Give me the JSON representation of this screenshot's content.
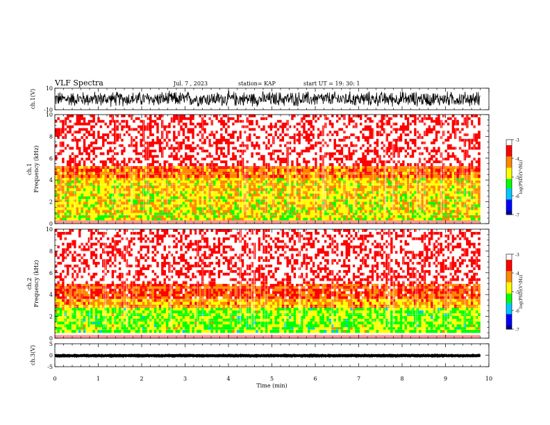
{
  "header": {
    "title": "VLF Spectra",
    "date": "Jul. 7 , 2023",
    "station": "station= KAP",
    "start": "start UT =  19: 30: 1"
  },
  "colors": {
    "scale": [
      "#00008b",
      "#0000ff",
      "#00c8ff",
      "#00ff00",
      "#ffff00",
      "#ff8800",
      "#ff0000",
      "#ffffff"
    ]
  },
  "chart_data": [
    {
      "type": "line",
      "panel": "ch1-waveform",
      "ylabel": "ch.1(V)",
      "ylim": [
        -10,
        10
      ],
      "yticks": [
        "10",
        "-10"
      ]
    },
    {
      "type": "heatmap",
      "panel": "ch1-spectrogram",
      "ylabel": "ch.1\nFrequency (kHz)",
      "ylim": [
        0,
        10
      ],
      "yticks": [
        "0",
        "2",
        "4",
        "6",
        "8",
        "10"
      ],
      "xlim": [
        0,
        10
      ],
      "colorbar": {
        "label": "log(PSD)(V²/Hz)",
        "range": [
          -7,
          -3
        ],
        "ticks": [
          "-3",
          "-4",
          "-5",
          "-6",
          "-7"
        ]
      },
      "bands": [
        {
          "fmin": 0.3,
          "fmax": 1.0,
          "level": -4.8
        },
        {
          "fmin": 1.0,
          "fmax": 3.0,
          "level": -4.6
        },
        {
          "fmin": 3.0,
          "fmax": 4.2,
          "level": -4.5
        },
        {
          "fmin": 4.2,
          "fmax": 5.3,
          "level": -4.0
        },
        {
          "fmin": 5.3,
          "fmax": 10,
          "level": -3.2
        }
      ]
    },
    {
      "type": "heatmap",
      "panel": "ch2-spectrogram",
      "ylabel": "ch.2\nFrequency (kHz)",
      "ylim": [
        0,
        10
      ],
      "yticks": [
        "0",
        "2",
        "4",
        "6",
        "8",
        "10"
      ],
      "xlim": [
        0,
        10
      ],
      "colorbar": {
        "label": "log(PSD)(V²/Hz)",
        "range": [
          -7,
          -3
        ],
        "ticks": [
          "-3",
          "-4",
          "-5",
          "-6",
          "-7"
        ]
      },
      "bands": [
        {
          "fmin": 0.5,
          "fmax": 2.8,
          "level": -5.0
        },
        {
          "fmin": 2.8,
          "fmax": 3.6,
          "level": -4.3
        },
        {
          "fmin": 3.6,
          "fmax": 5.0,
          "level": -3.8
        },
        {
          "fmin": 5.0,
          "fmax": 10,
          "level": -3.2
        }
      ]
    },
    {
      "type": "line",
      "panel": "ch3-waveform",
      "ylabel": "ch.3(V)",
      "ylim": [
        -5,
        5
      ],
      "yticks": [
        "5",
        "0",
        "-5"
      ],
      "xlabel": "Time (min)",
      "xlim": [
        0,
        10
      ],
      "xticks": [
        "0",
        "1",
        "2",
        "3",
        "4",
        "5",
        "6",
        "7",
        "8",
        "9",
        "10"
      ]
    }
  ]
}
